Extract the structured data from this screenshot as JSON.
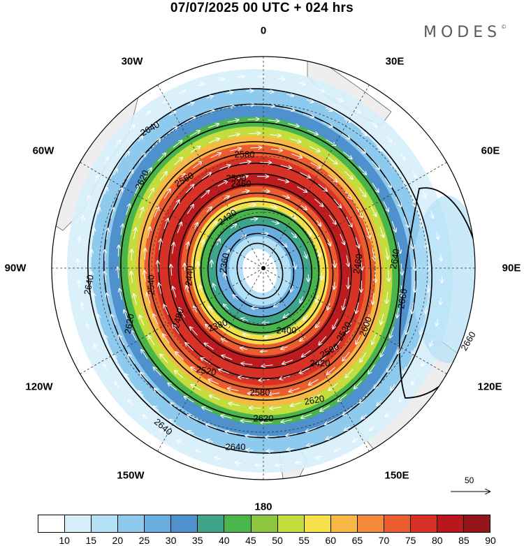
{
  "header": {
    "title": "07/07/2025  00 UTC  + 024 hrs",
    "brand": "MODES",
    "brand_mark": "©"
  },
  "map": {
    "projection": "polar-stereographic-south",
    "longitude_labels": [
      "0",
      "30E",
      "60E",
      "90E",
      "120E",
      "150E",
      "180",
      "150W",
      "120W",
      "90W",
      "60W",
      "30W"
    ],
    "contour_labels": [
      "2360",
      "2380",
      "2400",
      "2420",
      "2440",
      "2460",
      "2480",
      "2500",
      "2520",
      "2540",
      "2560",
      "2580",
      "2600",
      "2620",
      "2640",
      "2660"
    ],
    "reference_vector": "50"
  },
  "colorbar": {
    "ticks": [
      "10",
      "15",
      "20",
      "25",
      "30",
      "35",
      "40",
      "45",
      "50",
      "55",
      "60",
      "65",
      "70",
      "75",
      "80",
      "85",
      "90"
    ],
    "colors": [
      "#ffffff",
      "#d6eefa",
      "#b4e0f6",
      "#8ec9ee",
      "#6aaee0",
      "#4f91cc",
      "#3fa58a",
      "#49b54a",
      "#8cc640",
      "#c4dc3c",
      "#f6e04a",
      "#f8b845",
      "#f38b3a",
      "#ea5d2e",
      "#d83227",
      "#b8181d",
      "#95151a"
    ]
  },
  "colors": {
    "land": "#eeeeee",
    "coast": "#666666",
    "grid": "#333333",
    "vector": "#ffffff"
  }
}
